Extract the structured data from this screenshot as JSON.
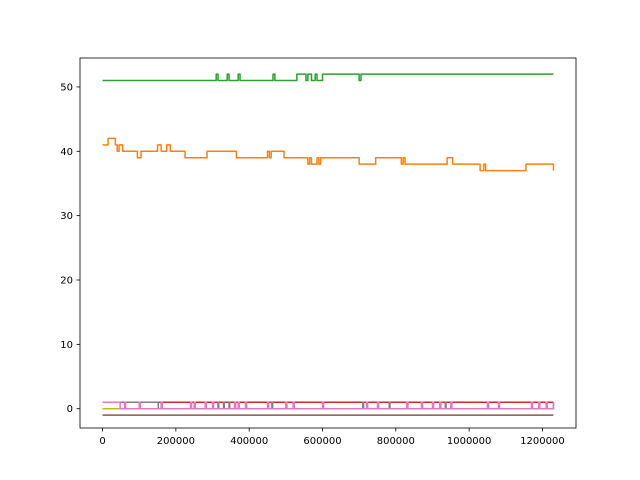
{
  "chart_data": {
    "type": "line",
    "title": "",
    "xlabel": "",
    "ylabel": "",
    "xlim": [
      -61500,
      1291500
    ],
    "ylim": [
      -3.0,
      54.5
    ],
    "x_ticks": [
      0,
      200000,
      400000,
      600000,
      800000,
      1000000,
      1200000
    ],
    "x_tick_labels": [
      "0",
      "200000",
      "400000",
      "600000",
      "800000",
      "1000000",
      "1200000"
    ],
    "y_ticks": [
      0,
      10,
      20,
      30,
      40,
      50
    ],
    "y_tick_labels": [
      "0",
      "10",
      "20",
      "30",
      "40",
      "50"
    ],
    "grid": false,
    "legend": "none",
    "series": [
      {
        "color": "#1f77b4",
        "x": [
          0,
          1230000
        ],
        "y": [
          0,
          0
        ]
      },
      {
        "color": "#ff7f0e",
        "x": [
          0,
          15000,
          20000,
          35000,
          40000,
          45000,
          55000,
          60000,
          70000,
          95000,
          105000,
          145000,
          150000,
          160000,
          175000,
          185000,
          225000,
          285000,
          365000,
          450000,
          455000,
          460000,
          465000,
          495000,
          560000,
          565000,
          570000,
          580000,
          585000,
          590000,
          595000,
          700000,
          745000,
          815000,
          820000,
          825000,
          830000,
          940000,
          955000,
          1030000,
          1040000,
          1045000,
          1060000,
          1155000,
          1230000
        ],
        "y": [
          41,
          42,
          42,
          41,
          40,
          41,
          40,
          40,
          40,
          39,
          40,
          40,
          41,
          40,
          41,
          40,
          39,
          40,
          39,
          40,
          39,
          40,
          40,
          39,
          38,
          39,
          38,
          38,
          39,
          38,
          39,
          38,
          39,
          38,
          39,
          38,
          38,
          39,
          38,
          37,
          38,
          37,
          37,
          38,
          37
        ]
      },
      {
        "color": "#2ca02c",
        "x": [
          0,
          300000,
          310000,
          315000,
          340000,
          345000,
          370000,
          375000,
          465000,
          470000,
          480000,
          530000,
          550000,
          555000,
          560000,
          570000,
          580000,
          585000,
          600000,
          695000,
          700000,
          705000,
          1230000
        ],
        "y": [
          51,
          51,
          52,
          51,
          52,
          51,
          52,
          51,
          52,
          51,
          51,
          52,
          52,
          51,
          52,
          51,
          52,
          51,
          52,
          52,
          51,
          52,
          52
        ]
      },
      {
        "color": "#d62728",
        "x": [
          0,
          1230000
        ],
        "y": [
          1,
          1
        ]
      },
      {
        "color": "#9467bd",
        "x": [
          0,
          1230000
        ],
        "y": [
          0,
          0
        ]
      },
      {
        "color": "#8c564b",
        "x": [
          0,
          1230000
        ],
        "y": [
          -1,
          -1
        ]
      },
      {
        "color": "#7f7f7f",
        "x": [
          0,
          150000,
          152000,
          160000,
          162000,
          315000,
          317000,
          330000,
          332000,
          345000,
          347000,
          462000,
          464000,
          710000,
          712000,
          782000,
          784000,
          935000,
          937000,
          1230000
        ],
        "y": [
          1,
          1,
          0,
          1,
          0,
          1,
          0,
          1,
          0,
          1,
          0,
          1,
          0,
          1,
          0,
          1,
          0,
          1,
          0,
          1
        ]
      },
      {
        "color": "#bcbd22",
        "x": [
          0,
          1230000
        ],
        "y": [
          0,
          0
        ]
      },
      {
        "color": "#e377c2",
        "x": [
          0,
          45000,
          48000,
          60000,
          63000,
          100000,
          103000,
          160000,
          163000,
          240000,
          243000,
          250000,
          253000,
          280000,
          283000,
          300000,
          303000,
          360000,
          363000,
          370000,
          373000,
          390000,
          393000,
          450000,
          453000,
          500000,
          503000,
          520000,
          523000,
          600000,
          603000,
          720000,
          723000,
          750000,
          753000,
          830000,
          833000,
          870000,
          873000,
          900000,
          903000,
          920000,
          923000,
          950000,
          953000,
          1050000,
          1053000,
          1080000,
          1083000,
          1170000,
          1173000,
          1190000,
          1193000,
          1210000,
          1213000,
          1230000
        ],
        "y": [
          1,
          1,
          0,
          1,
          0,
          1,
          0,
          1,
          0,
          1,
          0,
          1,
          0,
          1,
          0,
          1,
          0,
          1,
          0,
          1,
          0,
          1,
          0,
          1,
          0,
          1,
          0,
          1,
          0,
          1,
          0,
          1,
          0,
          1,
          0,
          1,
          0,
          1,
          0,
          1,
          0,
          1,
          0,
          1,
          0,
          1,
          0,
          1,
          0,
          1,
          0,
          1,
          0,
          1,
          0,
          1
        ]
      }
    ]
  }
}
